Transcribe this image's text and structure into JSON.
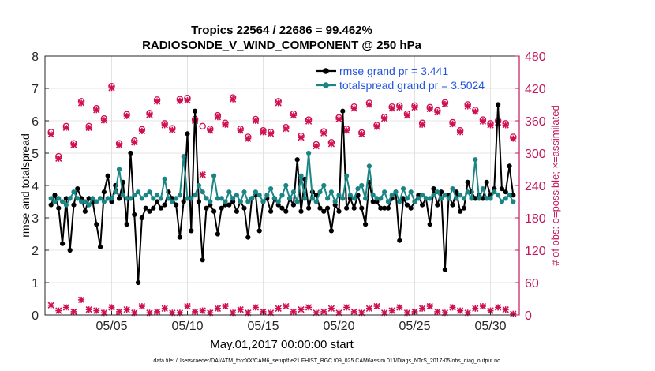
{
  "chart_data": {
    "type": "line",
    "title": "Tropics 22564 / 22686 = 99.462%",
    "subtitle": "RADIOSONDE_V_WIND_COMPONENT @ 250 hPa",
    "xlabel": "May.01,2017 00:00:00 start",
    "ylabel": "rmse and totalspread",
    "y2label": "# of obs: o=possible; ×=assimilated",
    "footnote": "data file: /Users/raeder/DAI/ATM_forcXX/CAM6_setup/f.e21.FHIST_BGC.f09_025.CAM6assim.011/Diags_NTrS_2017-05/obs_diag_output.nc",
    "xlim": [
      0.6,
      31.9
    ],
    "ylim": [
      0,
      8
    ],
    "y2lim": [
      0,
      480
    ],
    "yticks": [
      0,
      1,
      2,
      3,
      4,
      5,
      6,
      7,
      8
    ],
    "y2ticks": [
      0,
      60,
      120,
      180,
      240,
      300,
      360,
      420,
      480
    ],
    "xticks": [
      5,
      10,
      15,
      20,
      25,
      30
    ],
    "xticklabels": [
      "05/05",
      "05/10",
      "05/15",
      "05/20",
      "05/25",
      "05/30"
    ],
    "colors": {
      "rmse": "#000000",
      "spread": "#1a8585",
      "obs": "#d0104e",
      "y2axis": "#c2185b",
      "legend_text": "#2255dd"
    },
    "legend": [
      {
        "name": "rmse grand pr = 3.441",
        "series": "rmse"
      },
      {
        "name": "totalspread grand pr = 3.5024",
        "series": "spread"
      }
    ],
    "legend_position": "top-right",
    "grid": true,
    "x": [
      1.0,
      1.25,
      1.5,
      1.75,
      2.0,
      2.25,
      2.5,
      2.75,
      3.0,
      3.25,
      3.5,
      3.75,
      4.0,
      4.25,
      4.5,
      4.75,
      5.0,
      5.25,
      5.5,
      5.75,
      6.0,
      6.25,
      6.5,
      6.75,
      7.0,
      7.25,
      7.5,
      7.75,
      8.0,
      8.25,
      8.5,
      8.75,
      9.0,
      9.25,
      9.5,
      9.75,
      10.0,
      10.25,
      10.5,
      10.75,
      11.0,
      11.25,
      11.5,
      11.75,
      12.0,
      12.25,
      12.5,
      12.75,
      13.0,
      13.25,
      13.5,
      13.75,
      14.0,
      14.25,
      14.5,
      14.75,
      15.0,
      15.25,
      15.5,
      15.75,
      16.0,
      16.25,
      16.5,
      16.75,
      17.0,
      17.25,
      17.5,
      17.75,
      18.0,
      18.25,
      18.5,
      18.75,
      19.0,
      19.25,
      19.5,
      19.75,
      20.0,
      20.25,
      20.5,
      20.75,
      21.0,
      21.25,
      21.5,
      21.75,
      22.0,
      22.25,
      22.5,
      22.75,
      23.0,
      23.25,
      23.5,
      23.75,
      24.0,
      24.25,
      24.5,
      24.75,
      25.0,
      25.25,
      25.5,
      25.75,
      26.0,
      26.25,
      26.5,
      26.75,
      27.0,
      27.25,
      27.5,
      27.75,
      28.0,
      28.25,
      28.5,
      28.75,
      29.0,
      29.25,
      29.5,
      29.75,
      30.0,
      30.25,
      30.5,
      30.75,
      31.0,
      31.25,
      31.5
    ],
    "series": [
      {
        "name": "rmse",
        "values": [
          3.4,
          3.7,
          3.3,
          2.2,
          3.6,
          2.0,
          3.4,
          3.9,
          3.6,
          3.2,
          3.6,
          3.5,
          2.8,
          2.1,
          3.8,
          4.3,
          3.5,
          4.0,
          3.6,
          4.1,
          2.8,
          5.0,
          3.1,
          1.0,
          3.0,
          3.3,
          3.2,
          3.3,
          3.5,
          3.3,
          3.4,
          3.8,
          3.6,
          3.4,
          2.4,
          3.5,
          5.6,
          2.6,
          6.3,
          3.5,
          1.7,
          3.3,
          3.4,
          3.2,
          2.5,
          3.3,
          3.4,
          3.4,
          3.5,
          3.2,
          3.5,
          3.3,
          2.4,
          3.6,
          3.7,
          2.6,
          3.5,
          3.6,
          3.2,
          3.6,
          3.4,
          3.3,
          3.2,
          3.6,
          3.4,
          4.8,
          3.2,
          4.2,
          3.3,
          3.8,
          3.7,
          3.3,
          3.2,
          3.3,
          2.6,
          3.4,
          3.2,
          6.3,
          3.3,
          3.6,
          3.3,
          3.7,
          3.3,
          2.8,
          4.1,
          3.5,
          3.5,
          3.3,
          3.3,
          3.3,
          3.6,
          3.8,
          2.3,
          3.6,
          3.4,
          3.3,
          3.5,
          3.7,
          3.4,
          3.6,
          2.8,
          3.9,
          3.4,
          3.8,
          1.4,
          3.7,
          3.4,
          3.8,
          3.2,
          3.3,
          4.1,
          3.8,
          3.6,
          3.7,
          3.6,
          4.1,
          3.7,
          3.9,
          6.5,
          3.9,
          3.8,
          4.6,
          3.7
        ]
      },
      {
        "name": "totalspread",
        "values": [
          3.6,
          3.5,
          3.6,
          3.5,
          3.4,
          3.6,
          3.8,
          3.6,
          3.5,
          3.5,
          3.4,
          3.6,
          3.5,
          3.6,
          3.5,
          3.6,
          3.6,
          3.8,
          4.5,
          3.7,
          3.6,
          3.6,
          3.7,
          3.8,
          3.6,
          3.7,
          3.8,
          3.6,
          3.7,
          3.6,
          4.2,
          3.6,
          3.5,
          3.6,
          3.7,
          4.9,
          3.6,
          3.6,
          3.7,
          4.0,
          3.8,
          3.6,
          3.5,
          4.3,
          3.6,
          3.6,
          3.5,
          3.8,
          3.6,
          3.7,
          3.5,
          3.8,
          3.5,
          3.6,
          3.8,
          3.7,
          3.5,
          3.7,
          3.9,
          3.6,
          3.5,
          3.7,
          4.0,
          3.6,
          3.8,
          3.5,
          4.3,
          3.6,
          5.0,
          3.6,
          3.5,
          3.8,
          4.0,
          3.6,
          3.8,
          3.5,
          3.7,
          3.6,
          4.3,
          3.7,
          3.6,
          3.9,
          4.0,
          3.6,
          4.6,
          3.7,
          3.6,
          3.6,
          3.8,
          3.5,
          3.7,
          3.8,
          3.5,
          3.9,
          3.6,
          3.8,
          3.5,
          3.6,
          3.7,
          3.6,
          3.6,
          3.7,
          3.8,
          3.6,
          3.7,
          3.6,
          3.9,
          3.6,
          3.7,
          3.6,
          3.8,
          3.6,
          4.8,
          3.6,
          3.9,
          3.6,
          3.6,
          3.8,
          3.7,
          3.5,
          3.6,
          3.7,
          3.5
        ]
      }
    ],
    "obs_possible": [
      [
        1.0,
        339
      ],
      [
        1.5,
        294
      ],
      [
        2.0,
        350
      ],
      [
        2.5,
        318
      ],
      [
        3.0,
        396
      ],
      [
        3.5,
        350
      ],
      [
        4.0,
        383
      ],
      [
        4.5,
        364
      ],
      [
        5.0,
        424
      ],
      [
        5.5,
        318
      ],
      [
        6.0,
        372
      ],
      [
        6.5,
        323
      ],
      [
        7.0,
        344
      ],
      [
        7.5,
        374
      ],
      [
        8.0,
        399
      ],
      [
        8.5,
        355
      ],
      [
        9.0,
        346
      ],
      [
        9.5,
        400
      ],
      [
        10.0,
        402
      ],
      [
        10.5,
        363
      ],
      [
        11.0,
        350
      ],
      [
        11.5,
        345
      ],
      [
        12.0,
        370
      ],
      [
        12.5,
        356
      ],
      [
        13.0,
        403
      ],
      [
        13.5,
        345
      ],
      [
        14.0,
        330
      ],
      [
        14.5,
        363
      ],
      [
        15.0,
        342
      ],
      [
        15.5,
        339
      ],
      [
        16.0,
        396
      ],
      [
        16.5,
        348
      ],
      [
        17.0,
        373
      ],
      [
        17.5,
        332
      ],
      [
        18.0,
        362
      ],
      [
        18.5,
        316
      ],
      [
        19.0,
        340
      ],
      [
        19.5,
        320
      ],
      [
        20.0,
        366
      ],
      [
        20.5,
        345
      ],
      [
        21.0,
        386
      ],
      [
        21.5,
        338
      ],
      [
        22.0,
        393
      ],
      [
        22.5,
        352
      ],
      [
        23.0,
        367
      ],
      [
        23.5,
        386
      ],
      [
        24.0,
        388
      ],
      [
        24.5,
        373
      ],
      [
        25.0,
        388
      ],
      [
        25.5,
        356
      ],
      [
        26.0,
        385
      ],
      [
        26.5,
        379
      ],
      [
        27.0,
        394
      ],
      [
        27.5,
        357
      ],
      [
        28.0,
        342
      ],
      [
        28.5,
        390
      ],
      [
        29.0,
        380
      ],
      [
        29.5,
        362
      ],
      [
        30.0,
        355
      ],
      [
        30.5,
        360
      ],
      [
        31.0,
        355
      ],
      [
        31.5,
        330
      ]
    ],
    "obs_assimilated": [
      [
        1.0,
        335
      ],
      [
        1.5,
        290
      ],
      [
        2.0,
        347
      ],
      [
        2.5,
        315
      ],
      [
        3.0,
        393
      ],
      [
        3.5,
        347
      ],
      [
        4.0,
        380
      ],
      [
        4.5,
        361
      ],
      [
        5.0,
        421
      ],
      [
        5.5,
        315
      ],
      [
        6.0,
        369
      ],
      [
        6.5,
        320
      ],
      [
        7.0,
        341
      ],
      [
        7.5,
        371
      ],
      [
        8.0,
        396
      ],
      [
        8.5,
        352
      ],
      [
        9.0,
        343
      ],
      [
        9.5,
        397
      ],
      [
        10.0,
        398
      ],
      [
        10.5,
        360
      ],
      [
        11.0,
        260
      ],
      [
        11.5,
        342
      ],
      [
        12.0,
        367
      ],
      [
        12.5,
        353
      ],
      [
        13.0,
        400
      ],
      [
        13.5,
        342
      ],
      [
        14.0,
        327
      ],
      [
        14.5,
        360
      ],
      [
        15.0,
        339
      ],
      [
        15.5,
        336
      ],
      [
        16.0,
        393
      ],
      [
        16.5,
        345
      ],
      [
        17.0,
        370
      ],
      [
        17.5,
        329
      ],
      [
        18.0,
        359
      ],
      [
        18.5,
        313
      ],
      [
        19.0,
        337
      ],
      [
        19.5,
        317
      ],
      [
        20.0,
        363
      ],
      [
        20.5,
        342
      ],
      [
        21.0,
        383
      ],
      [
        21.5,
        335
      ],
      [
        22.0,
        390
      ],
      [
        22.5,
        349
      ],
      [
        23.0,
        364
      ],
      [
        23.5,
        383
      ],
      [
        24.0,
        385
      ],
      [
        24.5,
        370
      ],
      [
        25.0,
        385
      ],
      [
        25.5,
        353
      ],
      [
        26.0,
        382
      ],
      [
        26.5,
        376
      ],
      [
        27.0,
        391
      ],
      [
        27.5,
        354
      ],
      [
        28.0,
        339
      ],
      [
        28.5,
        387
      ],
      [
        29.0,
        377
      ],
      [
        29.5,
        359
      ],
      [
        30.0,
        352
      ],
      [
        30.5,
        357
      ],
      [
        31.0,
        352
      ],
      [
        31.5,
        327
      ]
    ],
    "obs_bottom": [
      [
        1.0,
        18
      ],
      [
        1.5,
        8
      ],
      [
        2.0,
        14
      ],
      [
        2.5,
        6
      ],
      [
        3.0,
        28
      ],
      [
        3.5,
        10
      ],
      [
        4.0,
        8
      ],
      [
        4.5,
        4
      ],
      [
        5.0,
        14
      ],
      [
        5.5,
        6
      ],
      [
        6.0,
        10
      ],
      [
        6.5,
        4
      ],
      [
        7.0,
        16
      ],
      [
        7.5,
        4
      ],
      [
        8.0,
        6
      ],
      [
        8.5,
        12
      ],
      [
        9.0,
        4
      ],
      [
        9.5,
        4
      ],
      [
        10.0,
        16
      ],
      [
        10.5,
        6
      ],
      [
        11.0,
        8
      ],
      [
        11.5,
        4
      ],
      [
        12.0,
        12
      ],
      [
        12.5,
        16
      ],
      [
        13.0,
        4
      ],
      [
        13.5,
        10
      ],
      [
        14.0,
        4
      ],
      [
        14.5,
        14
      ],
      [
        15.0,
        6
      ],
      [
        15.5,
        4
      ],
      [
        16.0,
        12
      ],
      [
        16.5,
        16
      ],
      [
        17.0,
        6
      ],
      [
        17.5,
        10
      ],
      [
        18.0,
        14
      ],
      [
        18.5,
        4
      ],
      [
        19.0,
        6
      ],
      [
        19.5,
        12
      ],
      [
        20.0,
        4
      ],
      [
        20.5,
        14
      ],
      [
        21.0,
        6
      ],
      [
        21.5,
        4
      ],
      [
        22.0,
        12
      ],
      [
        22.5,
        16
      ],
      [
        23.0,
        4
      ],
      [
        23.5,
        8
      ],
      [
        24.0,
        14
      ],
      [
        24.5,
        4
      ],
      [
        25.0,
        6
      ],
      [
        25.5,
        12
      ],
      [
        26.0,
        16
      ],
      [
        26.5,
        6
      ],
      [
        27.0,
        4
      ],
      [
        27.5,
        14
      ],
      [
        28.0,
        8
      ],
      [
        28.5,
        4
      ],
      [
        29.0,
        12
      ],
      [
        29.5,
        16
      ],
      [
        30.0,
        8
      ],
      [
        30.5,
        14
      ],
      [
        31.0,
        10
      ],
      [
        31.5,
        2
      ]
    ]
  }
}
